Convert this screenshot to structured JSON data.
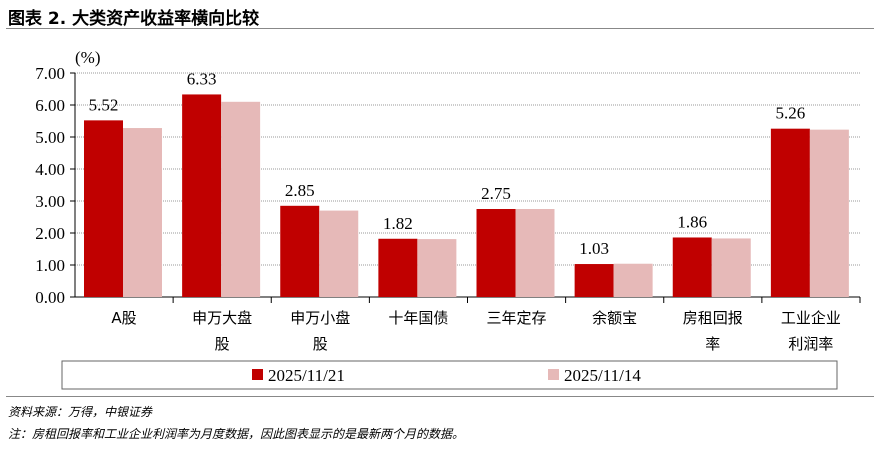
{
  "title": "图表 2. 大类资产收益率横向比较",
  "source": "资料来源：万得，中银证券",
  "note": "注：房租回报率和工业企业利润率为月度数据，因此图表显示的是最新两个月的数据。",
  "chart_data": {
    "type": "bar",
    "ylabel": "(%)",
    "ylim": [
      0,
      7
    ],
    "yticks": [
      "0.00",
      "1.00",
      "2.00",
      "3.00",
      "4.00",
      "5.00",
      "6.00",
      "7.00"
    ],
    "grid": true,
    "legend_placement": "bottom",
    "categories": [
      [
        "A股"
      ],
      [
        "申万大盘",
        "股"
      ],
      [
        "申万小盘",
        "股"
      ],
      [
        "十年国债"
      ],
      [
        "三年定存"
      ],
      [
        "余额宝"
      ],
      [
        "房租回报",
        "率"
      ],
      [
        "工业企业",
        "利润率"
      ]
    ],
    "series": [
      {
        "name": "2025/11/21",
        "color": "#C00000",
        "values": [
          5.52,
          6.33,
          2.85,
          1.82,
          2.75,
          1.03,
          1.86,
          5.26
        ],
        "labels": [
          "5.52",
          "6.33",
          "2.85",
          "1.82",
          "2.75",
          "1.03",
          "1.86",
          "5.26"
        ]
      },
      {
        "name": "2025/11/14",
        "color": "#E6B9B8",
        "values": [
          5.28,
          6.1,
          2.7,
          1.81,
          2.75,
          1.04,
          1.83,
          5.23
        ]
      }
    ]
  }
}
